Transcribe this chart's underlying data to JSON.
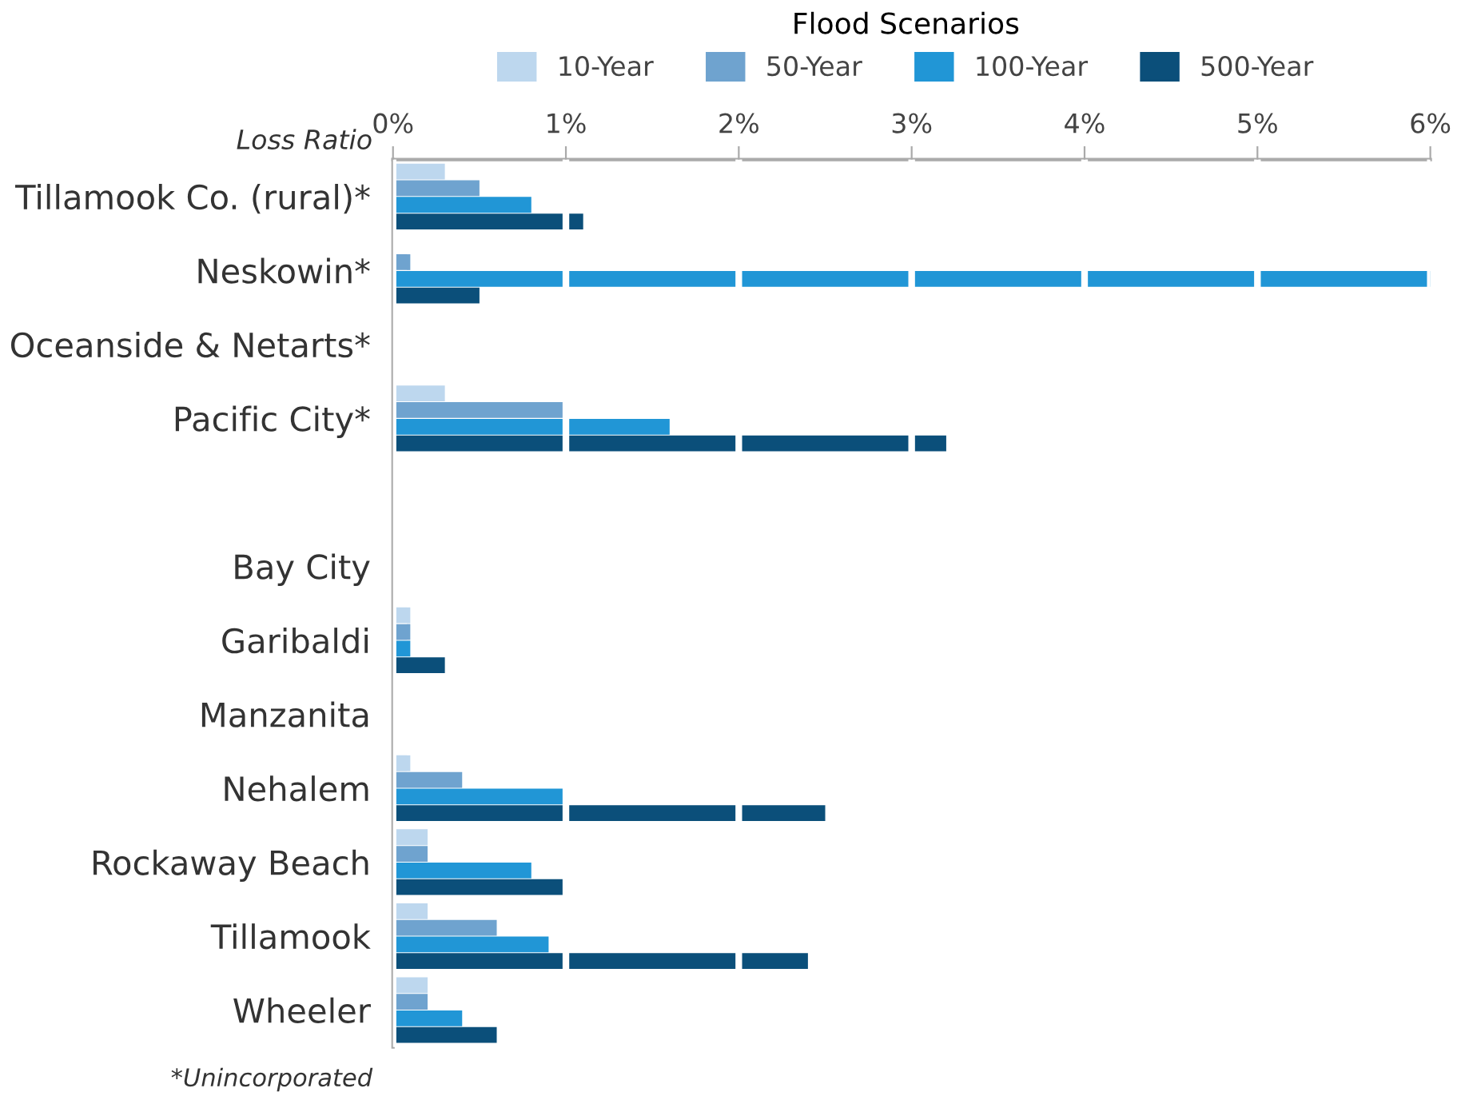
{
  "chart_data": {
    "type": "bar",
    "orientation": "horizontal",
    "legend_title": "Flood Scenarios",
    "xlabel": "Loss Ratio",
    "annotations": [
      "*Unincorporated"
    ],
    "categories": [
      "Tillamook Co. (rural)*",
      "Neskowin*",
      "Oceanside & Netarts*",
      "Pacific City*",
      null,
      "Bay City",
      "Garibaldi",
      "Manzanita",
      "Nehalem",
      "Rockaway Beach",
      "Tillamook",
      "Wheeler"
    ],
    "series": [
      {
        "name": "10-Year",
        "color": "#bdd7ee",
        "values": [
          0.3,
          0,
          0,
          0.3,
          null,
          0,
          0.1,
          0,
          0.1,
          0.2,
          0.2,
          0.2
        ]
      },
      {
        "name": "50-Year",
        "color": "#6fa3cf",
        "values": [
          0.5,
          0.1,
          0,
          1.0,
          null,
          0,
          0.1,
          0,
          0.4,
          0.2,
          0.6,
          0.2
        ]
      },
      {
        "name": "100-Year",
        "color": "#2196d6",
        "values": [
          0.8,
          6.0,
          0,
          1.6,
          null,
          0,
          0.1,
          0,
          1.0,
          0.8,
          0.9,
          0.4
        ]
      },
      {
        "name": "500-Year",
        "color": "#0b4f7a",
        "values": [
          1.1,
          0.5,
          0,
          3.2,
          null,
          0,
          0.3,
          0,
          2.5,
          1.0,
          2.4,
          0.6
        ]
      }
    ],
    "xlim": [
      0,
      6
    ],
    "xticks": [
      {
        "value": 0,
        "label": "0%"
      },
      {
        "value": 1,
        "label": "1%"
      },
      {
        "value": 2,
        "label": "2%"
      },
      {
        "value": 3,
        "label": "3%"
      },
      {
        "value": 4,
        "label": "4%"
      },
      {
        "value": 5,
        "label": "5%"
      },
      {
        "value": 6,
        "label": "6%"
      }
    ],
    "grid": "x",
    "legend": "top"
  }
}
